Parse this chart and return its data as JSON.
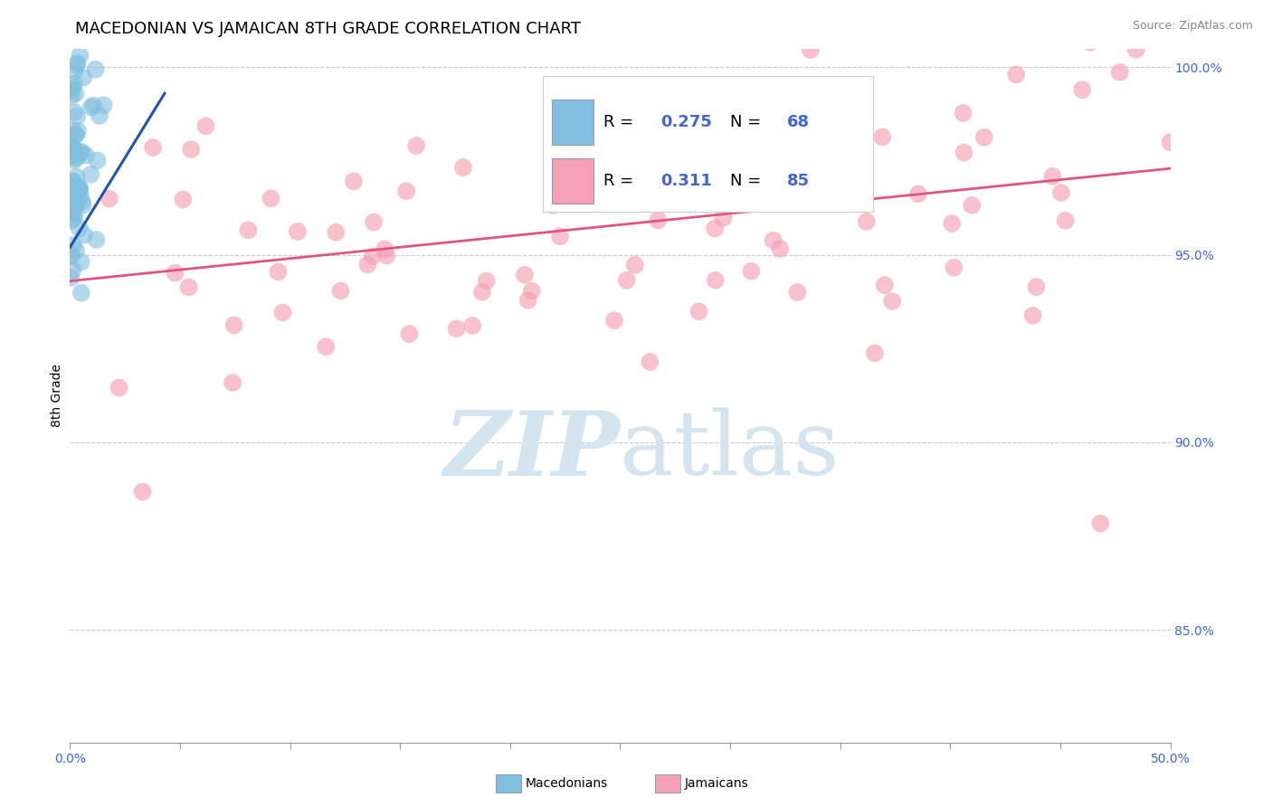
{
  "title": "MACEDONIAN VS JAMAICAN 8TH GRADE CORRELATION CHART",
  "source_text": "Source: ZipAtlas.com",
  "ylabel": "8th Grade",
  "xlim": [
    0.0,
    0.5
  ],
  "ylim": [
    0.82,
    1.005
  ],
  "yticks_right": [
    0.85,
    0.9,
    0.95,
    1.0
  ],
  "ytick_labels_right": [
    "85.0%",
    "90.0%",
    "95.0%",
    "100.0%"
  ],
  "legend_R_blue": "0.275",
  "legend_N_blue": "68",
  "legend_R_pink": "0.311",
  "legend_N_pink": "85",
  "blue_color": "#7fbfdf",
  "pink_color": "#f4a0b5",
  "blue_line_color": "#2255aa",
  "pink_line_color": "#e05580",
  "watermark_color": "#d5e5f0",
  "blue_trend_x": [
    0.0,
    0.043
  ],
  "blue_trend_y": [
    0.952,
    0.993
  ],
  "pink_trend_x": [
    0.0,
    0.5
  ],
  "pink_trend_y": [
    0.943,
    0.973
  ],
  "dashed_line_y": 0.998,
  "background_color": "#ffffff",
  "title_fontsize": 13,
  "ylabel_fontsize": 10,
  "tick_fontsize": 10,
  "legend_fontsize": 13
}
